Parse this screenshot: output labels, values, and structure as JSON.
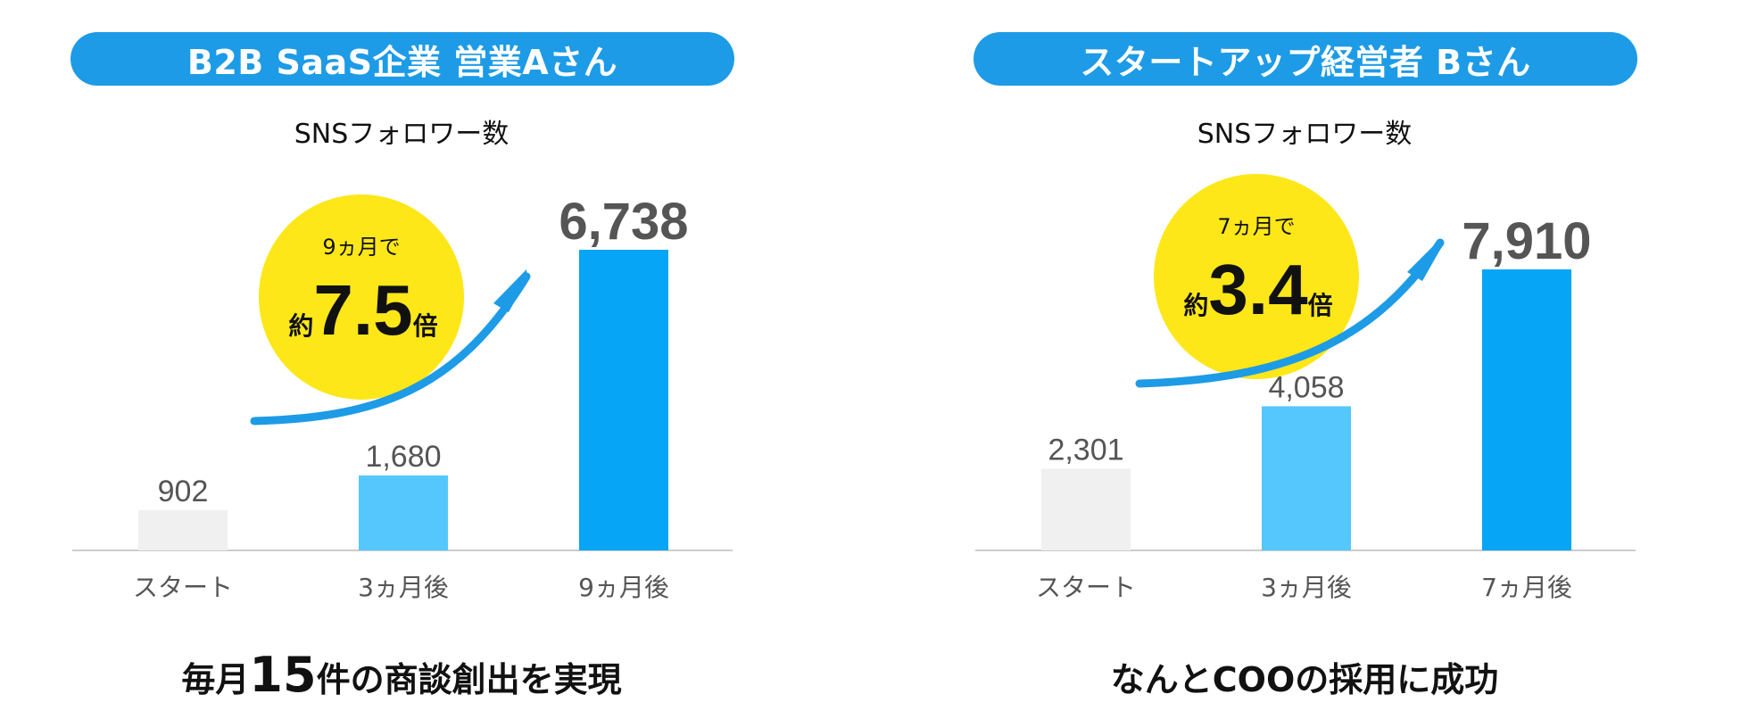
{
  "panels": [
    {
      "title": "B2B SaaS企業 営業Aさん",
      "bubble": {
        "period": "9ヵ月で",
        "prefix": "約",
        "multiplier": "7.5",
        "suffix": "倍"
      },
      "footer": {
        "before": "毎月",
        "highlight": "15",
        "after": "件の商談創出を実現"
      }
    },
    {
      "title": "スタートアップ経営者 Bさん",
      "bubble": {
        "period": "7ヵ月で",
        "prefix": "約",
        "multiplier": "3.4",
        "suffix": "倍"
      },
      "footer": {
        "before": "なんとCOOの採用に成功",
        "highlight": "",
        "after": ""
      }
    }
  ],
  "colors": {
    "pill": "#1d9be6",
    "bar_start": "#f0f0f0",
    "bar_mid": "#55c7fc",
    "bar_end": "#06a5f5",
    "bubble": "#fde719",
    "arrow": "#1d9be6",
    "axis": "#cccccc",
    "label_gray": "#555555"
  },
  "chart_data": [
    {
      "type": "bar",
      "title": "SNSフォロワー数",
      "categories": [
        "スタート",
        "3ヵ月後",
        "9ヵ月後"
      ],
      "values": [
        902,
        1680,
        6738
      ],
      "value_labels": [
        "902",
        "1,680",
        "6,738"
      ],
      "ylim": [
        0,
        7000
      ],
      "grid": false
    },
    {
      "type": "bar",
      "title": "SNSフォロワー数",
      "categories": [
        "スタート",
        "3ヵ月後",
        "7ヵ月後"
      ],
      "values": [
        2301,
        4058,
        7910
      ],
      "value_labels": [
        "2,301",
        "4,058",
        "7,910"
      ],
      "ylim": [
        0,
        7910
      ],
      "grid": false
    }
  ]
}
